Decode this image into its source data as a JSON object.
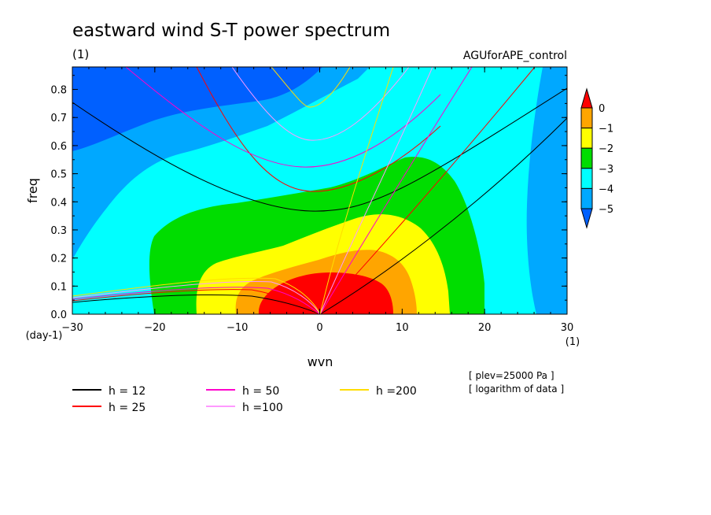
{
  "chart_data": {
    "type": "heatmap",
    "title": "eastward wind S-T power spectrum",
    "subtitle_left": "(1)",
    "subtitle_right": "AGUforAPE_control",
    "xlabel": "wvn",
    "ylabel": "freq",
    "x_unit_label": "(1)",
    "y_unit_label": "(day-1)",
    "xlim": [
      -30,
      30
    ],
    "ylim": [
      0,
      0.88
    ],
    "x_ticks": [
      "-30",
      "-20",
      "-10",
      "0",
      "10",
      "20",
      "30"
    ],
    "y_ticks": [
      "0.0",
      "0.1",
      "0.2",
      "0.3",
      "0.4",
      "0.5",
      "0.6",
      "0.7",
      "0.8"
    ],
    "colorbar": {
      "levels": [
        "0",
        "−1",
        "−2",
        "−3",
        "−4",
        "−5"
      ],
      "colors": [
        "#ff0000",
        "#ffa500",
        "#ffff00",
        "#00dd00",
        "#00ffff",
        "#00a8ff",
        "#0060ff"
      ],
      "over_color": "#ff0000",
      "under_color": "#0060ff"
    },
    "contour_fill": {
      "description_levels": [
        -5,
        -4,
        -3,
        -2,
        -1,
        0
      ],
      "level_colors": [
        "#0060ff",
        "#00a8ff",
        "#00ffff",
        "#00dd00",
        "#ffff00",
        "#ffa500",
        "#ff0000"
      ]
    },
    "dispersion_curves": [
      {
        "label": "h = 12",
        "color": "#000000",
        "equivalent_depth_m": 12
      },
      {
        "label": "h = 25",
        "color": "#ff0000",
        "equivalent_depth_m": 25
      },
      {
        "label": "h = 50",
        "color": "#ff00cc",
        "equivalent_depth_m": 50
      },
      {
        "label": "h =100",
        "color": "#ff99ff",
        "equivalent_depth_m": 100
      },
      {
        "label": "h =200",
        "color": "#ffdd00",
        "equivalent_depth_m": 200
      }
    ],
    "notes": [
      "[ plev=25000 Pa ]",
      "[ logarithm of data ]"
    ]
  }
}
